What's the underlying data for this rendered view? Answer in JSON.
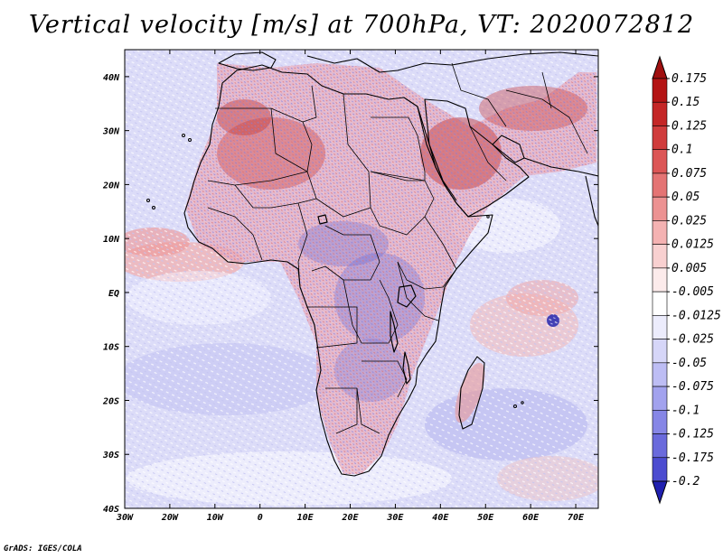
{
  "title": "Vertical velocity [m/s] at 700hPa, VT: 2020072812",
  "credit": "GrADS: IGES/COLA",
  "map": {
    "lon_range": [
      -30,
      75
    ],
    "lat_range": [
      -40,
      45
    ],
    "lon_ticks": [
      {
        "value": -30,
        "label": "30W"
      },
      {
        "value": -20,
        "label": "20W"
      },
      {
        "value": -10,
        "label": "10W"
      },
      {
        "value": 0,
        "label": "0"
      },
      {
        "value": 10,
        "label": "10E"
      },
      {
        "value": 20,
        "label": "20E"
      },
      {
        "value": 30,
        "label": "30E"
      },
      {
        "value": 40,
        "label": "40E"
      },
      {
        "value": 50,
        "label": "50E"
      },
      {
        "value": 60,
        "label": "60E"
      },
      {
        "value": 70,
        "label": "70E"
      }
    ],
    "lat_ticks": [
      {
        "value": 40,
        "label": "40N"
      },
      {
        "value": 30,
        "label": "30N"
      },
      {
        "value": 20,
        "label": "20N"
      },
      {
        "value": 10,
        "label": "10N"
      },
      {
        "value": 0,
        "label": "EQ"
      },
      {
        "value": -10,
        "label": "10S"
      },
      {
        "value": -20,
        "label": "20S"
      },
      {
        "value": -30,
        "label": "30S"
      },
      {
        "value": -40,
        "label": "40S"
      }
    ]
  },
  "colorbar": {
    "levels": [
      {
        "label": "0.175",
        "color": "#b41414"
      },
      {
        "label": "0.15",
        "color": "#c42626"
      },
      {
        "label": "0.125",
        "color": "#d03c3c"
      },
      {
        "label": "0.1",
        "color": "#dc5656"
      },
      {
        "label": "0.075",
        "color": "#e47474"
      },
      {
        "label": "0.05",
        "color": "#ec9292"
      },
      {
        "label": "0.025",
        "color": "#f4b2b2"
      },
      {
        "label": "0.0125",
        "color": "#f8d0d0"
      },
      {
        "label": "0.005",
        "color": "#fcebeb"
      },
      {
        "label": "-0.005",
        "color": "#ffffff"
      },
      {
        "label": "-0.0125",
        "color": "#ececfc"
      },
      {
        "label": "-0.025",
        "color": "#d6d6f8"
      },
      {
        "label": "-0.05",
        "color": "#bdbdf4"
      },
      {
        "label": "-0.075",
        "color": "#a2a2ee"
      },
      {
        "label": "-0.1",
        "color": "#8686e6"
      },
      {
        "label": "-0.125",
        "color": "#6a6adc"
      },
      {
        "label": "-0.175",
        "color": "#4c4cd0"
      },
      {
        "label": "-0.2",
        "color": "#3030c0"
      }
    ],
    "top_color": "#a01010",
    "bottom_color": "#2020b0"
  },
  "features": {
    "land_outlines": [
      "Africa",
      "Arabian Peninsula",
      "Madagascar",
      "Iberia",
      "Iran"
    ],
    "water_bodies": [
      "Lake Victoria",
      "Lake Tanganyika",
      "Lake Malawi",
      "Red Sea",
      "Persian Gulf"
    ]
  }
}
